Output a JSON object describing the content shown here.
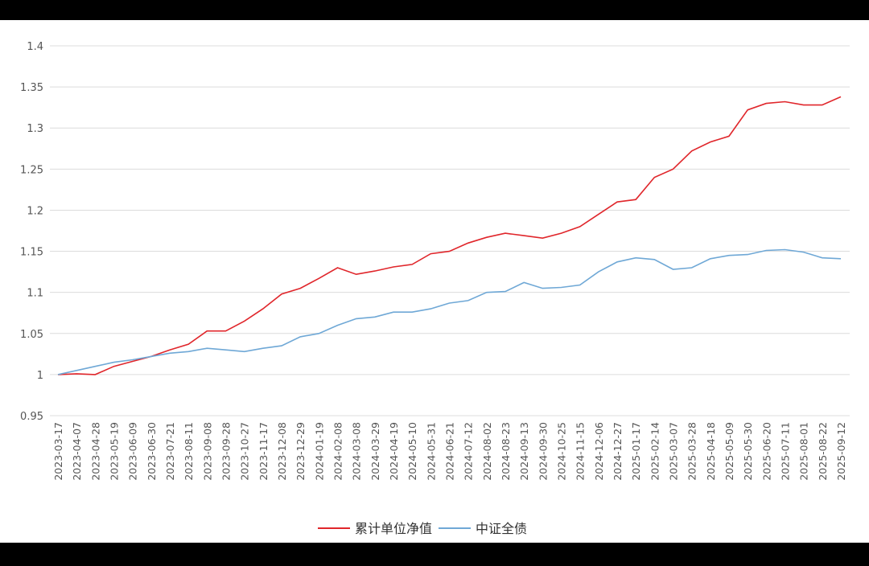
{
  "chart_data": {
    "type": "line",
    "categories": [
      "2023-03-17",
      "2023-04-07",
      "2023-04-28",
      "2023-05-19",
      "2023-06-09",
      "2023-06-30",
      "2023-07-21",
      "2023-08-11",
      "2023-09-08",
      "2023-09-28",
      "2023-10-27",
      "2023-11-17",
      "2023-12-08",
      "2023-12-29",
      "2024-01-19",
      "2024-02-08",
      "2024-03-08",
      "2024-03-29",
      "2024-04-19",
      "2024-05-10",
      "2024-05-31",
      "2024-06-21",
      "2024-07-12",
      "2024-08-02",
      "2024-08-23",
      "2024-09-13",
      "2024-09-30",
      "2024-10-25",
      "2024-11-15",
      "2024-12-06",
      "2024-12-27",
      "2025-01-17",
      "2025-02-14",
      "2025-03-07",
      "2025-03-28",
      "2025-04-18",
      "2025-05-09",
      "2025-05-30",
      "2025-06-20",
      "2025-07-11",
      "2025-08-01",
      "2025-08-22",
      "2025-09-12"
    ],
    "series": [
      {
        "name": "累计单位净值",
        "color": "#e0262b",
        "values": [
          1.0,
          1.001,
          1.0,
          1.01,
          1.016,
          1.022,
          1.03,
          1.037,
          1.053,
          1.053,
          1.065,
          1.08,
          1.098,
          1.105,
          1.117,
          1.13,
          1.122,
          1.126,
          1.131,
          1.134,
          1.147,
          1.15,
          1.16,
          1.167,
          1.172,
          1.169,
          1.166,
          1.172,
          1.18,
          1.195,
          1.21,
          1.213,
          1.24,
          1.25,
          1.272,
          1.283,
          1.29,
          1.322,
          1.33,
          1.332,
          1.328,
          1.328,
          1.338
        ]
      },
      {
        "name": "中证全债",
        "color": "#6fa8d6",
        "values": [
          1.0,
          1.005,
          1.01,
          1.015,
          1.018,
          1.022,
          1.026,
          1.028,
          1.032,
          1.03,
          1.028,
          1.032,
          1.035,
          1.046,
          1.05,
          1.06,
          1.068,
          1.07,
          1.076,
          1.076,
          1.08,
          1.087,
          1.09,
          1.1,
          1.101,
          1.112,
          1.105,
          1.106,
          1.109,
          1.125,
          1.137,
          1.142,
          1.14,
          1.128,
          1.13,
          1.141,
          1.145,
          1.146,
          1.151,
          1.152,
          1.149,
          1.142,
          1.141
        ]
      }
    ],
    "ylim": [
      0.95,
      1.4
    ],
    "yticks": [
      0.95,
      1,
      1.05,
      1.1,
      1.15,
      1.2,
      1.25,
      1.3,
      1.35,
      1.4
    ],
    "grid": true
  }
}
